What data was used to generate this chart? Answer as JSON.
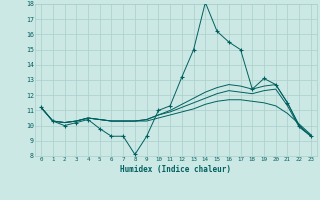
{
  "xlabel": "Humidex (Indice chaleur)",
  "ylabel": "",
  "bg_color": "#cce8e4",
  "grid_color": "#aacfcb",
  "line_color": "#006060",
  "xmin": -0.5,
  "xmax": 23.5,
  "ymin": 8,
  "ymax": 18,
  "xticks": [
    0,
    1,
    2,
    3,
    4,
    5,
    6,
    7,
    8,
    9,
    10,
    11,
    12,
    13,
    14,
    15,
    16,
    17,
    18,
    19,
    20,
    21,
    22,
    23
  ],
  "yticks": [
    8,
    9,
    10,
    11,
    12,
    13,
    14,
    15,
    16,
    17,
    18
  ],
  "series1_x": [
    0,
    1,
    2,
    3,
    4,
    5,
    6,
    7,
    8,
    9,
    10,
    11,
    12,
    13,
    14,
    15,
    16,
    17,
    18,
    19,
    20,
    21,
    22,
    23
  ],
  "series1_y": [
    11.2,
    10.3,
    10.0,
    10.2,
    10.4,
    9.8,
    9.3,
    9.3,
    8.1,
    9.3,
    11.0,
    11.3,
    13.2,
    15.0,
    18.1,
    16.2,
    15.5,
    15.0,
    12.4,
    13.1,
    12.7,
    11.5,
    10.0,
    9.3
  ],
  "series2_x": [
    0,
    1,
    2,
    3,
    4,
    5,
    6,
    7,
    8,
    9,
    10,
    11,
    12,
    13,
    14,
    15,
    16,
    17,
    18,
    19,
    20,
    21,
    22,
    23
  ],
  "series2_y": [
    11.2,
    10.3,
    10.2,
    10.3,
    10.5,
    10.4,
    10.3,
    10.3,
    10.3,
    10.4,
    10.7,
    11.0,
    11.4,
    11.8,
    12.2,
    12.5,
    12.7,
    12.6,
    12.4,
    12.6,
    12.7,
    11.5,
    10.0,
    9.3
  ],
  "series3_x": [
    0,
    1,
    2,
    3,
    4,
    5,
    6,
    7,
    8,
    9,
    10,
    11,
    12,
    13,
    14,
    15,
    16,
    17,
    18,
    19,
    20,
    21,
    22,
    23
  ],
  "series3_y": [
    11.2,
    10.3,
    10.2,
    10.3,
    10.5,
    10.4,
    10.3,
    10.3,
    10.3,
    10.4,
    10.7,
    10.9,
    11.2,
    11.5,
    11.8,
    12.1,
    12.3,
    12.2,
    12.1,
    12.3,
    12.4,
    11.3,
    9.9,
    9.3
  ],
  "series4_x": [
    0,
    1,
    2,
    3,
    4,
    5,
    6,
    7,
    8,
    9,
    10,
    11,
    12,
    13,
    14,
    15,
    16,
    17,
    18,
    19,
    20,
    21,
    22,
    23
  ],
  "series4_y": [
    11.2,
    10.3,
    10.2,
    10.3,
    10.5,
    10.4,
    10.3,
    10.3,
    10.3,
    10.3,
    10.5,
    10.7,
    10.9,
    11.1,
    11.4,
    11.6,
    11.7,
    11.7,
    11.6,
    11.5,
    11.3,
    10.8,
    10.1,
    9.4
  ]
}
